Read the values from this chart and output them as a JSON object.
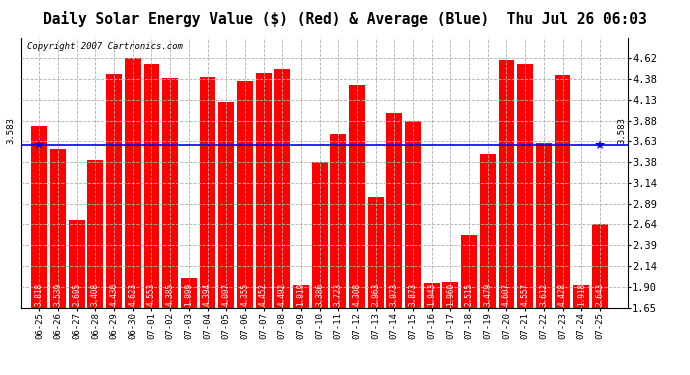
{
  "title": "Daily Solar Energy Value ($) (Red) & Average (Blue)  Thu Jul 26 06:03",
  "copyright": "Copyright 2007 Cartronics.com",
  "average": 3.583,
  "categories": [
    "06-25",
    "06-26",
    "06-27",
    "06-28",
    "06-29",
    "06-30",
    "07-01",
    "07-02",
    "07-03",
    "07-04",
    "07-05",
    "07-06",
    "07-07",
    "07-08",
    "07-09",
    "07-10",
    "07-11",
    "07-12",
    "07-13",
    "07-14",
    "07-15",
    "07-16",
    "07-17",
    "07-18",
    "07-19",
    "07-20",
    "07-21",
    "07-22",
    "07-23",
    "07-24",
    "07-25"
  ],
  "values": [
    3.818,
    3.539,
    2.695,
    3.408,
    4.43,
    4.623,
    4.553,
    4.385,
    1.999,
    4.394,
    4.097,
    4.355,
    4.452,
    4.492,
    1.919,
    3.386,
    3.723,
    4.308,
    2.963,
    3.973,
    3.873,
    1.943,
    1.96,
    2.515,
    3.479,
    4.607,
    4.557,
    3.612,
    4.428,
    1.918,
    2.643
  ],
  "bar_color": "#ff0000",
  "avg_line_color": "#0000ff",
  "bg_color": "#ffffff",
  "plot_bg_color": "#ffffff",
  "grid_color": "#b0b0b0",
  "ylim": [
    1.65,
    4.87
  ],
  "yticks": [
    1.65,
    1.9,
    2.14,
    2.39,
    2.64,
    2.89,
    3.14,
    3.38,
    3.63,
    3.88,
    4.13,
    4.38,
    4.62
  ],
  "title_fontsize": 10.5,
  "copyright_fontsize": 6.5,
  "value_label_fontsize": 5.5,
  "ytick_fontsize": 7.5,
  "xtick_fontsize": 6.5
}
